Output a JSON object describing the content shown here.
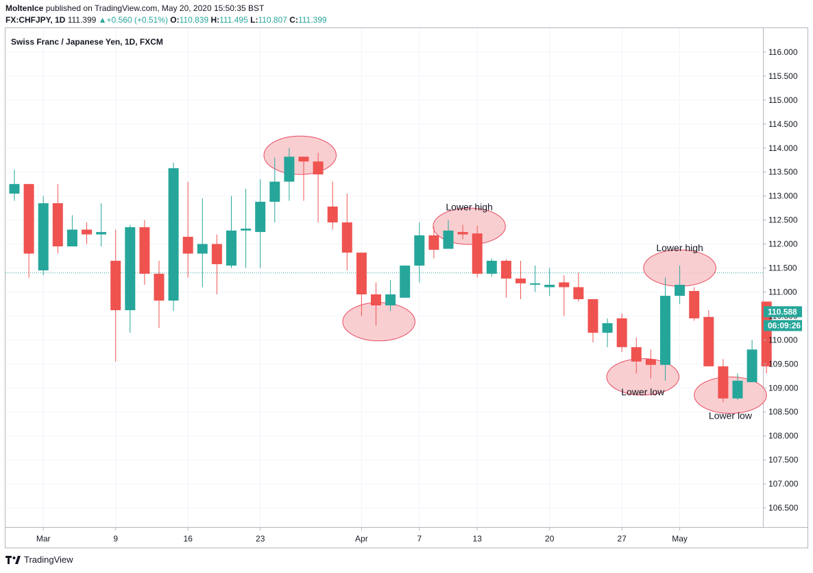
{
  "header": {
    "author": "MoltenIce",
    "published_text": "published on TradingView.com, May 20, 2020 15:50:35 BST",
    "symbol": "FX:CHFJPY, 1D",
    "last": "111.399",
    "change": "+0.560 (+0.51%)",
    "open_label": "O:",
    "open": "110.839",
    "high_label": "H:",
    "high": "111.495",
    "low_label": "L:",
    "low": "110.807",
    "close_label": "C:",
    "close": "111.399"
  },
  "footer": {
    "brand": "TradingView",
    "logo_icon": "tradingview-logo-icon"
  },
  "colors": {
    "up": "#26a69a",
    "down": "#ef5350",
    "grid": "#f0f3fa",
    "annotation_fill": "#f8c6c9",
    "annotation_stroke": "#e84a5f"
  },
  "chart_data": {
    "type": "candlestick",
    "title": "Swiss Franc / Japanese Yen, 1D, FXCM",
    "ylim": [
      106.1,
      116.5
    ],
    "y_ticks": [
      "106.500",
      "107.000",
      "107.500",
      "108.000",
      "108.500",
      "109.000",
      "109.500",
      "110.000",
      "110.500",
      "111.000",
      "111.500",
      "112.000",
      "112.500",
      "113.000",
      "113.500",
      "114.000",
      "114.500",
      "115.000",
      "115.500",
      "116.000"
    ],
    "x_ticks": [
      {
        "label": "Mar",
        "index": 2
      },
      {
        "label": "9",
        "index": 7
      },
      {
        "label": "16",
        "index": 12
      },
      {
        "label": "23",
        "index": 17
      },
      {
        "label": "Apr",
        "index": 24
      },
      {
        "label": "7",
        "index": 28
      },
      {
        "label": "13",
        "index": 32
      },
      {
        "label": "20",
        "index": 37
      },
      {
        "label": "27",
        "index": 42
      },
      {
        "label": "May",
        "index": 46
      }
    ],
    "grid": true,
    "current_price_line": 111.399,
    "price_labels": [
      {
        "value": 110.588,
        "text": "110.588"
      },
      {
        "value": 110.3,
        "text": "06:09:26"
      }
    ],
    "candles": [
      {
        "o": 113.05,
        "h": 113.55,
        "l": 112.9,
        "c": 113.25
      },
      {
        "o": 113.25,
        "h": 113.25,
        "l": 111.3,
        "c": 111.8
      },
      {
        "o": 111.45,
        "h": 113.0,
        "l": 111.35,
        "c": 112.85
      },
      {
        "o": 112.85,
        "h": 113.25,
        "l": 111.8,
        "c": 111.95
      },
      {
        "o": 111.95,
        "h": 112.6,
        "l": 111.95,
        "c": 112.3
      },
      {
        "o": 112.3,
        "h": 112.45,
        "l": 112.0,
        "c": 112.2
      },
      {
        "o": 112.2,
        "h": 112.85,
        "l": 111.95,
        "c": 112.25
      },
      {
        "o": 111.65,
        "h": 112.3,
        "l": 109.55,
        "c": 110.62
      },
      {
        "o": 110.62,
        "h": 112.4,
        "l": 110.15,
        "c": 112.35
      },
      {
        "o": 112.35,
        "h": 112.5,
        "l": 111.15,
        "c": 111.38
      },
      {
        "o": 111.38,
        "h": 111.65,
        "l": 110.25,
        "c": 110.82
      },
      {
        "o": 110.82,
        "h": 113.7,
        "l": 110.6,
        "c": 113.58
      },
      {
        "o": 112.15,
        "h": 113.3,
        "l": 111.3,
        "c": 111.8
      },
      {
        "o": 111.8,
        "h": 112.95,
        "l": 111.1,
        "c": 112.0
      },
      {
        "o": 112.0,
        "h": 112.2,
        "l": 110.95,
        "c": 111.58
      },
      {
        "o": 111.55,
        "h": 113.0,
        "l": 111.5,
        "c": 112.28
      },
      {
        "o": 112.28,
        "h": 113.15,
        "l": 111.5,
        "c": 112.32
      },
      {
        "o": 112.25,
        "h": 113.35,
        "l": 111.5,
        "c": 112.88
      },
      {
        "o": 112.88,
        "h": 113.8,
        "l": 112.45,
        "c": 113.3
      },
      {
        "o": 113.3,
        "h": 114.0,
        "l": 112.9,
        "c": 113.82
      },
      {
        "o": 113.82,
        "h": 113.82,
        "l": 112.9,
        "c": 113.72
      },
      {
        "o": 113.72,
        "h": 113.9,
        "l": 112.45,
        "c": 113.45
      },
      {
        "o": 112.78,
        "h": 113.3,
        "l": 112.3,
        "c": 112.45
      },
      {
        "o": 112.45,
        "h": 113.05,
        "l": 111.45,
        "c": 111.82
      },
      {
        "o": 111.82,
        "h": 111.82,
        "l": 110.5,
        "c": 110.95
      },
      {
        "o": 110.95,
        "h": 111.2,
        "l": 110.3,
        "c": 110.72
      },
      {
        "o": 110.72,
        "h": 111.25,
        "l": 110.6,
        "c": 110.95
      },
      {
        "o": 110.88,
        "h": 111.55,
        "l": 110.88,
        "c": 111.55
      },
      {
        "o": 111.55,
        "h": 112.45,
        "l": 111.2,
        "c": 112.18
      },
      {
        "o": 112.18,
        "h": 112.35,
        "l": 111.7,
        "c": 111.88
      },
      {
        "o": 111.9,
        "h": 112.5,
        "l": 111.9,
        "c": 112.28
      },
      {
        "o": 112.25,
        "h": 112.4,
        "l": 112.1,
        "c": 112.2
      },
      {
        "o": 112.22,
        "h": 112.38,
        "l": 111.3,
        "c": 111.38
      },
      {
        "o": 111.38,
        "h": 111.7,
        "l": 111.32,
        "c": 111.65
      },
      {
        "o": 111.65,
        "h": 111.68,
        "l": 110.88,
        "c": 111.28
      },
      {
        "o": 111.28,
        "h": 111.65,
        "l": 110.85,
        "c": 111.18
      },
      {
        "o": 111.18,
        "h": 111.55,
        "l": 111.0,
        "c": 111.18
      },
      {
        "o": 111.1,
        "h": 111.5,
        "l": 110.92,
        "c": 111.15
      },
      {
        "o": 111.2,
        "h": 111.35,
        "l": 110.5,
        "c": 111.1
      },
      {
        "o": 111.1,
        "h": 111.4,
        "l": 110.8,
        "c": 110.85
      },
      {
        "o": 110.85,
        "h": 110.85,
        "l": 109.95,
        "c": 110.15
      },
      {
        "o": 110.15,
        "h": 110.45,
        "l": 109.85,
        "c": 110.35
      },
      {
        "o": 110.45,
        "h": 110.55,
        "l": 109.75,
        "c": 109.85
      },
      {
        "o": 109.85,
        "h": 110.05,
        "l": 109.3,
        "c": 109.55
      },
      {
        "o": 109.6,
        "h": 109.8,
        "l": 109.2,
        "c": 109.48
      },
      {
        "o": 109.48,
        "h": 111.3,
        "l": 109.15,
        "c": 110.92
      },
      {
        "o": 110.92,
        "h": 111.55,
        "l": 110.75,
        "c": 111.15
      },
      {
        "o": 111.02,
        "h": 111.1,
        "l": 110.4,
        "c": 110.45
      },
      {
        "o": 110.48,
        "h": 110.62,
        "l": 109.45,
        "c": 109.45
      },
      {
        "o": 109.45,
        "h": 109.6,
        "l": 108.7,
        "c": 108.78
      },
      {
        "o": 108.78,
        "h": 109.3,
        "l": 108.75,
        "c": 109.15
      },
      {
        "o": 109.12,
        "h": 110.0,
        "l": 109.12,
        "c": 109.8
      },
      {
        "o": 110.8,
        "h": 110.8,
        "l": 109.3,
        "c": 109.45
      }
    ],
    "annotations": [
      {
        "type": "ellipse",
        "label": "",
        "index": 19.75,
        "value": 113.85,
        "index_span": 2.5,
        "value_span": 0.4
      },
      {
        "type": "ellipse",
        "label": "",
        "index": 25.2,
        "value": 110.38,
        "index_span": 2.5,
        "value_span": 0.4
      },
      {
        "type": "ellipse",
        "label": "Lower high",
        "index": 31.45,
        "value": 112.37,
        "index_span": 2.5,
        "value_span": 0.38,
        "label_value": 112.7
      },
      {
        "type": "ellipse",
        "label": "Lower high",
        "index": 46.0,
        "value": 111.5,
        "index_span": 2.5,
        "value_span": 0.38,
        "label_value": 111.85
      },
      {
        "type": "ellipse",
        "label": "Lower low",
        "index": 43.45,
        "value": 109.23,
        "index_span": 2.5,
        "value_span": 0.38,
        "label_value": 108.85
      },
      {
        "type": "ellipse",
        "label": "Lower low",
        "index": 49.5,
        "value": 108.85,
        "index_span": 2.5,
        "value_span": 0.38,
        "label_value": 108.35
      }
    ]
  }
}
